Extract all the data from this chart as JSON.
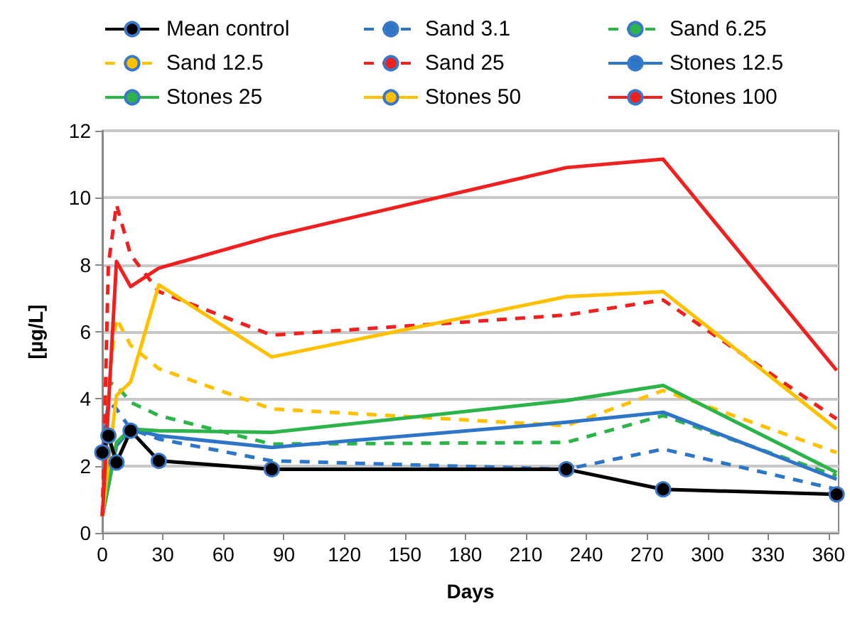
{
  "chart_data": {
    "type": "line",
    "xlabel": "Days",
    "ylabel": "[µg/L]",
    "xlim": [
      0,
      365
    ],
    "xticks": [
      0,
      30,
      60,
      90,
      120,
      150,
      180,
      210,
      240,
      270,
      300,
      330,
      360
    ],
    "ylim": [
      0,
      12
    ],
    "yticks": [
      0,
      2,
      4,
      6,
      8,
      10,
      12
    ],
    "grid": "y",
    "legend": "top",
    "series": [
      {
        "name": "Mean control",
        "color": "#000000",
        "marker": "circle",
        "line_style": "solid",
        "x": [
          0,
          3,
          7,
          14,
          28,
          84,
          230,
          278,
          364
        ],
        "values": [
          2.4,
          2.9,
          2.1,
          3.05,
          2.15,
          1.9,
          1.9,
          1.3,
          1.15
        ]
      },
      {
        "name": "Sand 3.1",
        "color": "#2e75c8",
        "marker": "none",
        "line_style": "dashed",
        "x": [
          0,
          3,
          7,
          14,
          28,
          84,
          230,
          278,
          364
        ],
        "values": [
          2.4,
          3.9,
          3.7,
          3.1,
          2.8,
          2.15,
          1.9,
          2.5,
          1.3
        ]
      },
      {
        "name": "Sand 6.25",
        "color": "#2cb34a",
        "marker": "none",
        "line_style": "dashed",
        "x": [
          0,
          3,
          7,
          14,
          28,
          84,
          230,
          278,
          364
        ],
        "values": [
          0.5,
          4.5,
          4.4,
          3.9,
          3.5,
          2.65,
          2.7,
          3.5,
          1.7
        ]
      },
      {
        "name": "Sand 12.5",
        "color": "#ffc000",
        "marker": "none",
        "line_style": "dashed",
        "x": [
          0,
          3,
          7,
          14,
          28,
          84,
          230,
          278,
          364
        ],
        "values": [
          0.5,
          4.5,
          6.4,
          5.6,
          4.9,
          3.7,
          3.2,
          4.25,
          2.4
        ]
      },
      {
        "name": "Sand 25",
        "color": "#f02020",
        "marker": "none",
        "line_style": "dashed",
        "x": [
          0,
          3,
          7,
          14,
          28,
          84,
          230,
          278,
          364
        ],
        "values": [
          0.5,
          8,
          9.8,
          8.3,
          7.2,
          5.9,
          6.5,
          6.95,
          3.4
        ]
      },
      {
        "name": "Stones 12.5",
        "color": "#2e75c8",
        "marker": "none",
        "line_style": "solid",
        "x": [
          0,
          7,
          14,
          28,
          84,
          230,
          278,
          364
        ],
        "values": [
          0.5,
          2.6,
          3.1,
          2.9,
          2.55,
          3.3,
          3.6,
          1.6
        ]
      },
      {
        "name": "Stones 25",
        "color": "#2cb34a",
        "marker": "none",
        "line_style": "solid",
        "x": [
          0,
          7,
          14,
          28,
          84,
          230,
          278,
          364
        ],
        "values": [
          0.5,
          2.7,
          3.1,
          3.05,
          3.0,
          3.95,
          4.4,
          1.8
        ]
      },
      {
        "name": "Stones 50",
        "color": "#ffc000",
        "marker": "none",
        "line_style": "solid",
        "x": [
          0,
          7,
          14,
          28,
          84,
          230,
          278,
          364
        ],
        "values": [
          0.5,
          4.1,
          4.5,
          7.4,
          5.25,
          7.05,
          7.2,
          3.1
        ]
      },
      {
        "name": "Stones 100",
        "color": "#f02020",
        "marker": "none",
        "line_style": "solid",
        "x": [
          0,
          7,
          14,
          28,
          84,
          230,
          278,
          364
        ],
        "values": [
          0.5,
          8.1,
          7.35,
          7.9,
          8.85,
          10.9,
          11.15,
          4.85
        ]
      }
    ]
  }
}
